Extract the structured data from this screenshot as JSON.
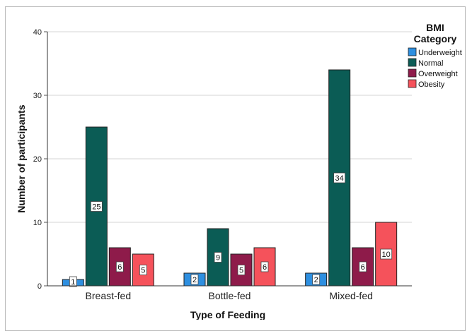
{
  "chart_data": {
    "type": "bar",
    "xlabel": "Type of Feeding",
    "ylabel": "Number of participants",
    "ylim": [
      0,
      40
    ],
    "yticks": [
      0,
      10,
      20,
      30,
      40
    ],
    "grid": true,
    "legend_title_lines": [
      "BMI",
      "Category"
    ],
    "legend_position": "right",
    "categories": [
      "Breast-fed",
      "Bottle-fed",
      "Mixed-fed"
    ],
    "series": [
      {
        "name": "Underweight",
        "values": [
          1,
          2,
          2
        ],
        "color": "#2E8FE0"
      },
      {
        "name": "Normal",
        "values": [
          25,
          9,
          34
        ],
        "color": "#0B5C55"
      },
      {
        "name": "Overweight",
        "values": [
          6,
          5,
          6
        ],
        "color": "#8E1B4A"
      },
      {
        "name": "Obesity",
        "values": [
          5,
          6,
          10
        ],
        "color": "#F5525B"
      }
    ]
  }
}
